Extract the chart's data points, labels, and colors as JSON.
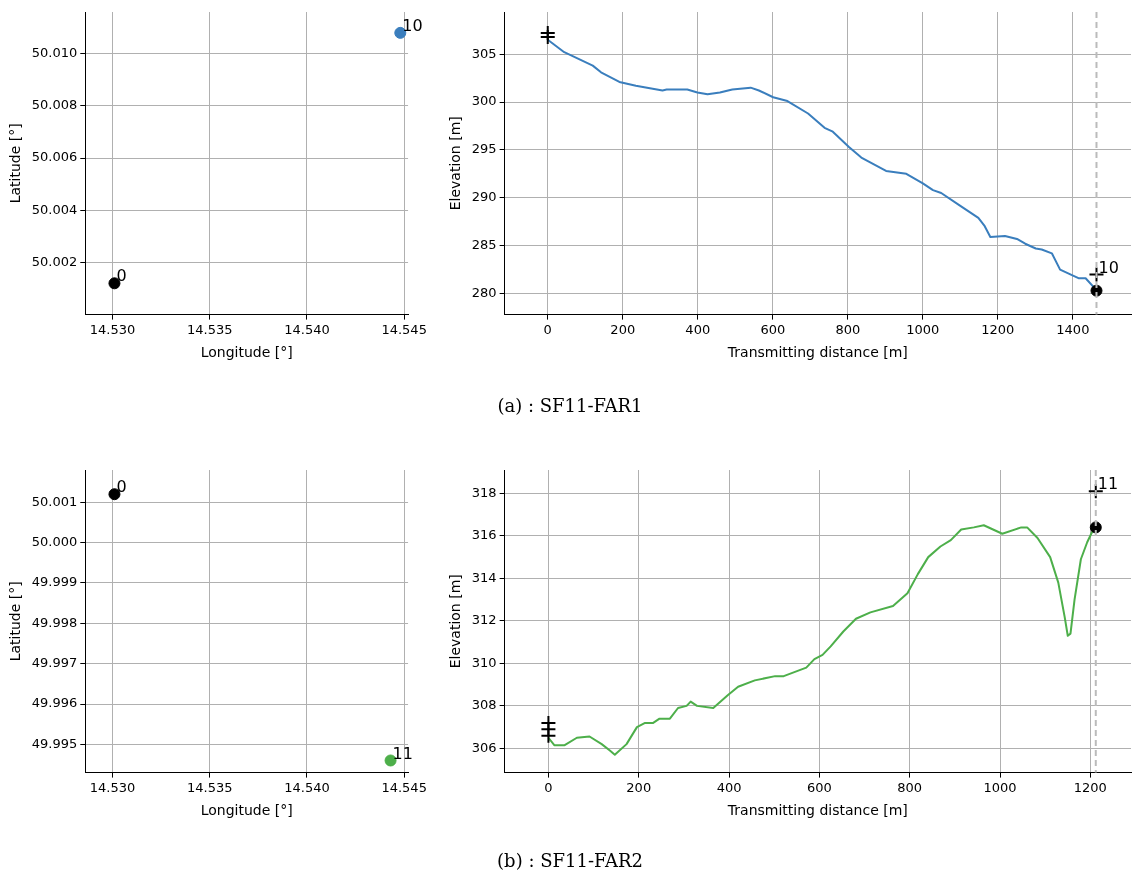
{
  "chart_data": [
    {
      "type": "scatter",
      "xlabel": "Longitude [°]",
      "ylabel": "Latitude [°]",
      "xlim": [
        14.5286,
        14.5452
      ],
      "ylim": [
        50.0,
        50.0116
      ],
      "xticks": [
        {
          "value": 14.53,
          "label": "14.530"
        },
        {
          "value": 14.535,
          "label": "14.535"
        },
        {
          "value": 14.54,
          "label": "14.540"
        },
        {
          "value": 14.545,
          "label": "14.545"
        }
      ],
      "yticks": [
        50.002,
        50.004,
        50.006,
        {
          "value": 50.008,
          "label": "50.008"
        },
        {
          "value": 50.01,
          "label": "50.010"
        }
      ],
      "grid": true,
      "legend": false,
      "series": [
        {
          "color": "#000000",
          "marker": "circle",
          "x": [
            14.5301
          ],
          "values": [
            50.0012
          ]
        },
        {
          "color": "#3a7ebd",
          "marker": "circle",
          "x": [
            14.5448
          ],
          "values": [
            50.0108
          ]
        }
      ],
      "annotations": [
        {
          "text": "0",
          "x": 14.5301,
          "y": 50.0012
        },
        {
          "text": "10",
          "x": 14.5448,
          "y": 50.0108
        }
      ]
    },
    {
      "type": "line",
      "xlabel": "Transmitting distance [m]",
      "ylabel": "Elevation [m]",
      "xlim": [
        -115,
        1555
      ],
      "ylim": [
        277.8,
        309.4
      ],
      "xticks": [
        0,
        200,
        400,
        600,
        800,
        1000,
        1200,
        1400
      ],
      "yticks": [
        280,
        285,
        290,
        295,
        300,
        305
      ],
      "grid": true,
      "legend": false,
      "ref_lines": [
        {
          "axis": "x",
          "value": 1463,
          "color": "#bbbbbb",
          "line_style": "dashed"
        }
      ],
      "series": [
        {
          "type": "line",
          "color": "#3a7ebd",
          "marker": "none",
          "x": [
            0,
            44,
            82,
            120,
            142,
            191,
            235,
            306,
            317,
            372,
            399,
            426,
            459,
            492,
            541,
            563,
            601,
            639,
            694,
            738,
            760,
            803,
            836,
            902,
            956,
            1000,
            1027,
            1049,
            1098,
            1148,
            1164,
            1180,
            1219,
            1251,
            1273,
            1301,
            1317,
            1344,
            1366,
            1399,
            1415,
            1434,
            1464
          ],
          "values": [
            306.5,
            305.2,
            304.5,
            303.8,
            303.1,
            302.1,
            301.7,
            301.2,
            301.3,
            301.3,
            301.0,
            300.8,
            301.0,
            301.3,
            301.5,
            301.2,
            300.5,
            300.1,
            298.8,
            297.3,
            296.9,
            295.3,
            294.2,
            292.8,
            292.5,
            291.5,
            290.8,
            290.5,
            289.2,
            287.9,
            287.1,
            285.9,
            286.0,
            285.7,
            285.2,
            284.7,
            284.6,
            284.2,
            282.5,
            281.9,
            281.6,
            281.6,
            280.3
          ]
        },
        {
          "type": "scatter",
          "color": "#000000",
          "marker": "cross",
          "x": [
            0,
            0,
            1463
          ],
          "values": [
            307.2,
            306.8,
            282.0
          ]
        },
        {
          "type": "scatter",
          "color": "#000000",
          "marker": "circle",
          "x": [
            1463
          ],
          "values": [
            280.3
          ]
        }
      ],
      "annotations": [
        {
          "text": "10",
          "x": 1463,
          "y": 282.0
        },
        "(a) :  SF11-FAR1"
      ]
    },
    {
      "type": "scatter",
      "xlabel": "Longitude [°]",
      "ylabel": "Latitude [°]",
      "xlim": [
        14.5286,
        14.5452
      ],
      "ylim": [
        49.9943,
        50.0018
      ],
      "xticks": [
        {
          "value": 14.53,
          "label": "14.530"
        },
        {
          "value": 14.535,
          "label": "14.535"
        },
        {
          "value": 14.54,
          "label": "14.540"
        },
        {
          "value": 14.545,
          "label": "14.545"
        }
      ],
      "yticks": [
        49.995,
        49.996,
        49.997,
        49.998,
        49.999,
        {
          "value": 50.0,
          "label": "50.000"
        },
        50.001
      ],
      "grid": true,
      "legend": false,
      "series": [
        {
          "color": "#000000",
          "marker": "circle",
          "x": [
            14.5301
          ],
          "values": [
            50.0012
          ]
        },
        {
          "color": "#4daf4a",
          "marker": "circle",
          "x": [
            14.5443
          ],
          "values": [
            49.9946
          ]
        }
      ],
      "annotations": [
        {
          "text": "0",
          "x": 14.5301,
          "y": 50.0012
        },
        {
          "text": "11",
          "x": 14.5443,
          "y": 49.9946
        }
      ]
    },
    {
      "type": "line",
      "xlabel": "Transmitting distance [m]",
      "ylabel": "Elevation [m]",
      "xlim": [
        -97,
        1290
      ],
      "ylim": [
        304.86,
        319.1
      ],
      "xticks": [
        0,
        200,
        400,
        600,
        800,
        1000,
        1200
      ],
      "yticks": [
        306,
        308,
        310,
        312,
        314,
        316,
        318
      ],
      "grid": true,
      "legend": false,
      "ref_lines": [
        {
          "axis": "x",
          "value": 1212,
          "color": "#bbbbbb",
          "line_style": "dashed"
        }
      ],
      "series": [
        {
          "type": "line",
          "color": "#4daf4a",
          "marker": "none",
          "x": [
            0,
            13,
            36,
            63,
            91,
            118,
            136,
            147,
            173,
            196,
            214,
            232,
            246,
            269,
            287,
            306,
            315,
            329,
            365,
            397,
            420,
            457,
            502,
            521,
            571,
            589,
            607,
            625,
            653,
            681,
            713,
            763,
            795,
            818,
            841,
            868,
            891,
            914,
            942,
            964,
            1005,
            1047,
            1060,
            1083,
            1111,
            1129,
            1143,
            1150,
            1156,
            1165,
            1179,
            1193,
            1211
          ],
          "values": [
            306.5,
            306.15,
            306.15,
            306.5,
            306.56,
            306.2,
            305.9,
            305.7,
            306.2,
            307.0,
            307.2,
            307.2,
            307.4,
            307.4,
            307.9,
            308.0,
            308.2,
            308.0,
            307.9,
            308.5,
            308.9,
            309.2,
            309.4,
            309.4,
            309.8,
            310.2,
            310.4,
            310.8,
            311.5,
            312.1,
            312.4,
            312.7,
            313.3,
            314.2,
            315.0,
            315.5,
            315.8,
            316.3,
            316.4,
            316.5,
            316.1,
            316.4,
            316.4,
            315.9,
            315.0,
            313.8,
            312.2,
            311.3,
            311.4,
            313.0,
            314.9,
            315.7,
            316.5
          ]
        },
        {
          "type": "scatter",
          "color": "#000000",
          "marker": "cross",
          "x": [
            0,
            0,
            0,
            1212
          ],
          "values": [
            307.2,
            306.9,
            306.6,
            318.1
          ]
        },
        {
          "type": "scatter",
          "color": "#000000",
          "marker": "circle",
          "x": [
            1212
          ],
          "values": [
            316.4
          ]
        }
      ],
      "annotations": [
        {
          "text": "11",
          "x": 1212,
          "y": 318.1
        },
        "(b) :  SF11-FAR2"
      ]
    }
  ]
}
